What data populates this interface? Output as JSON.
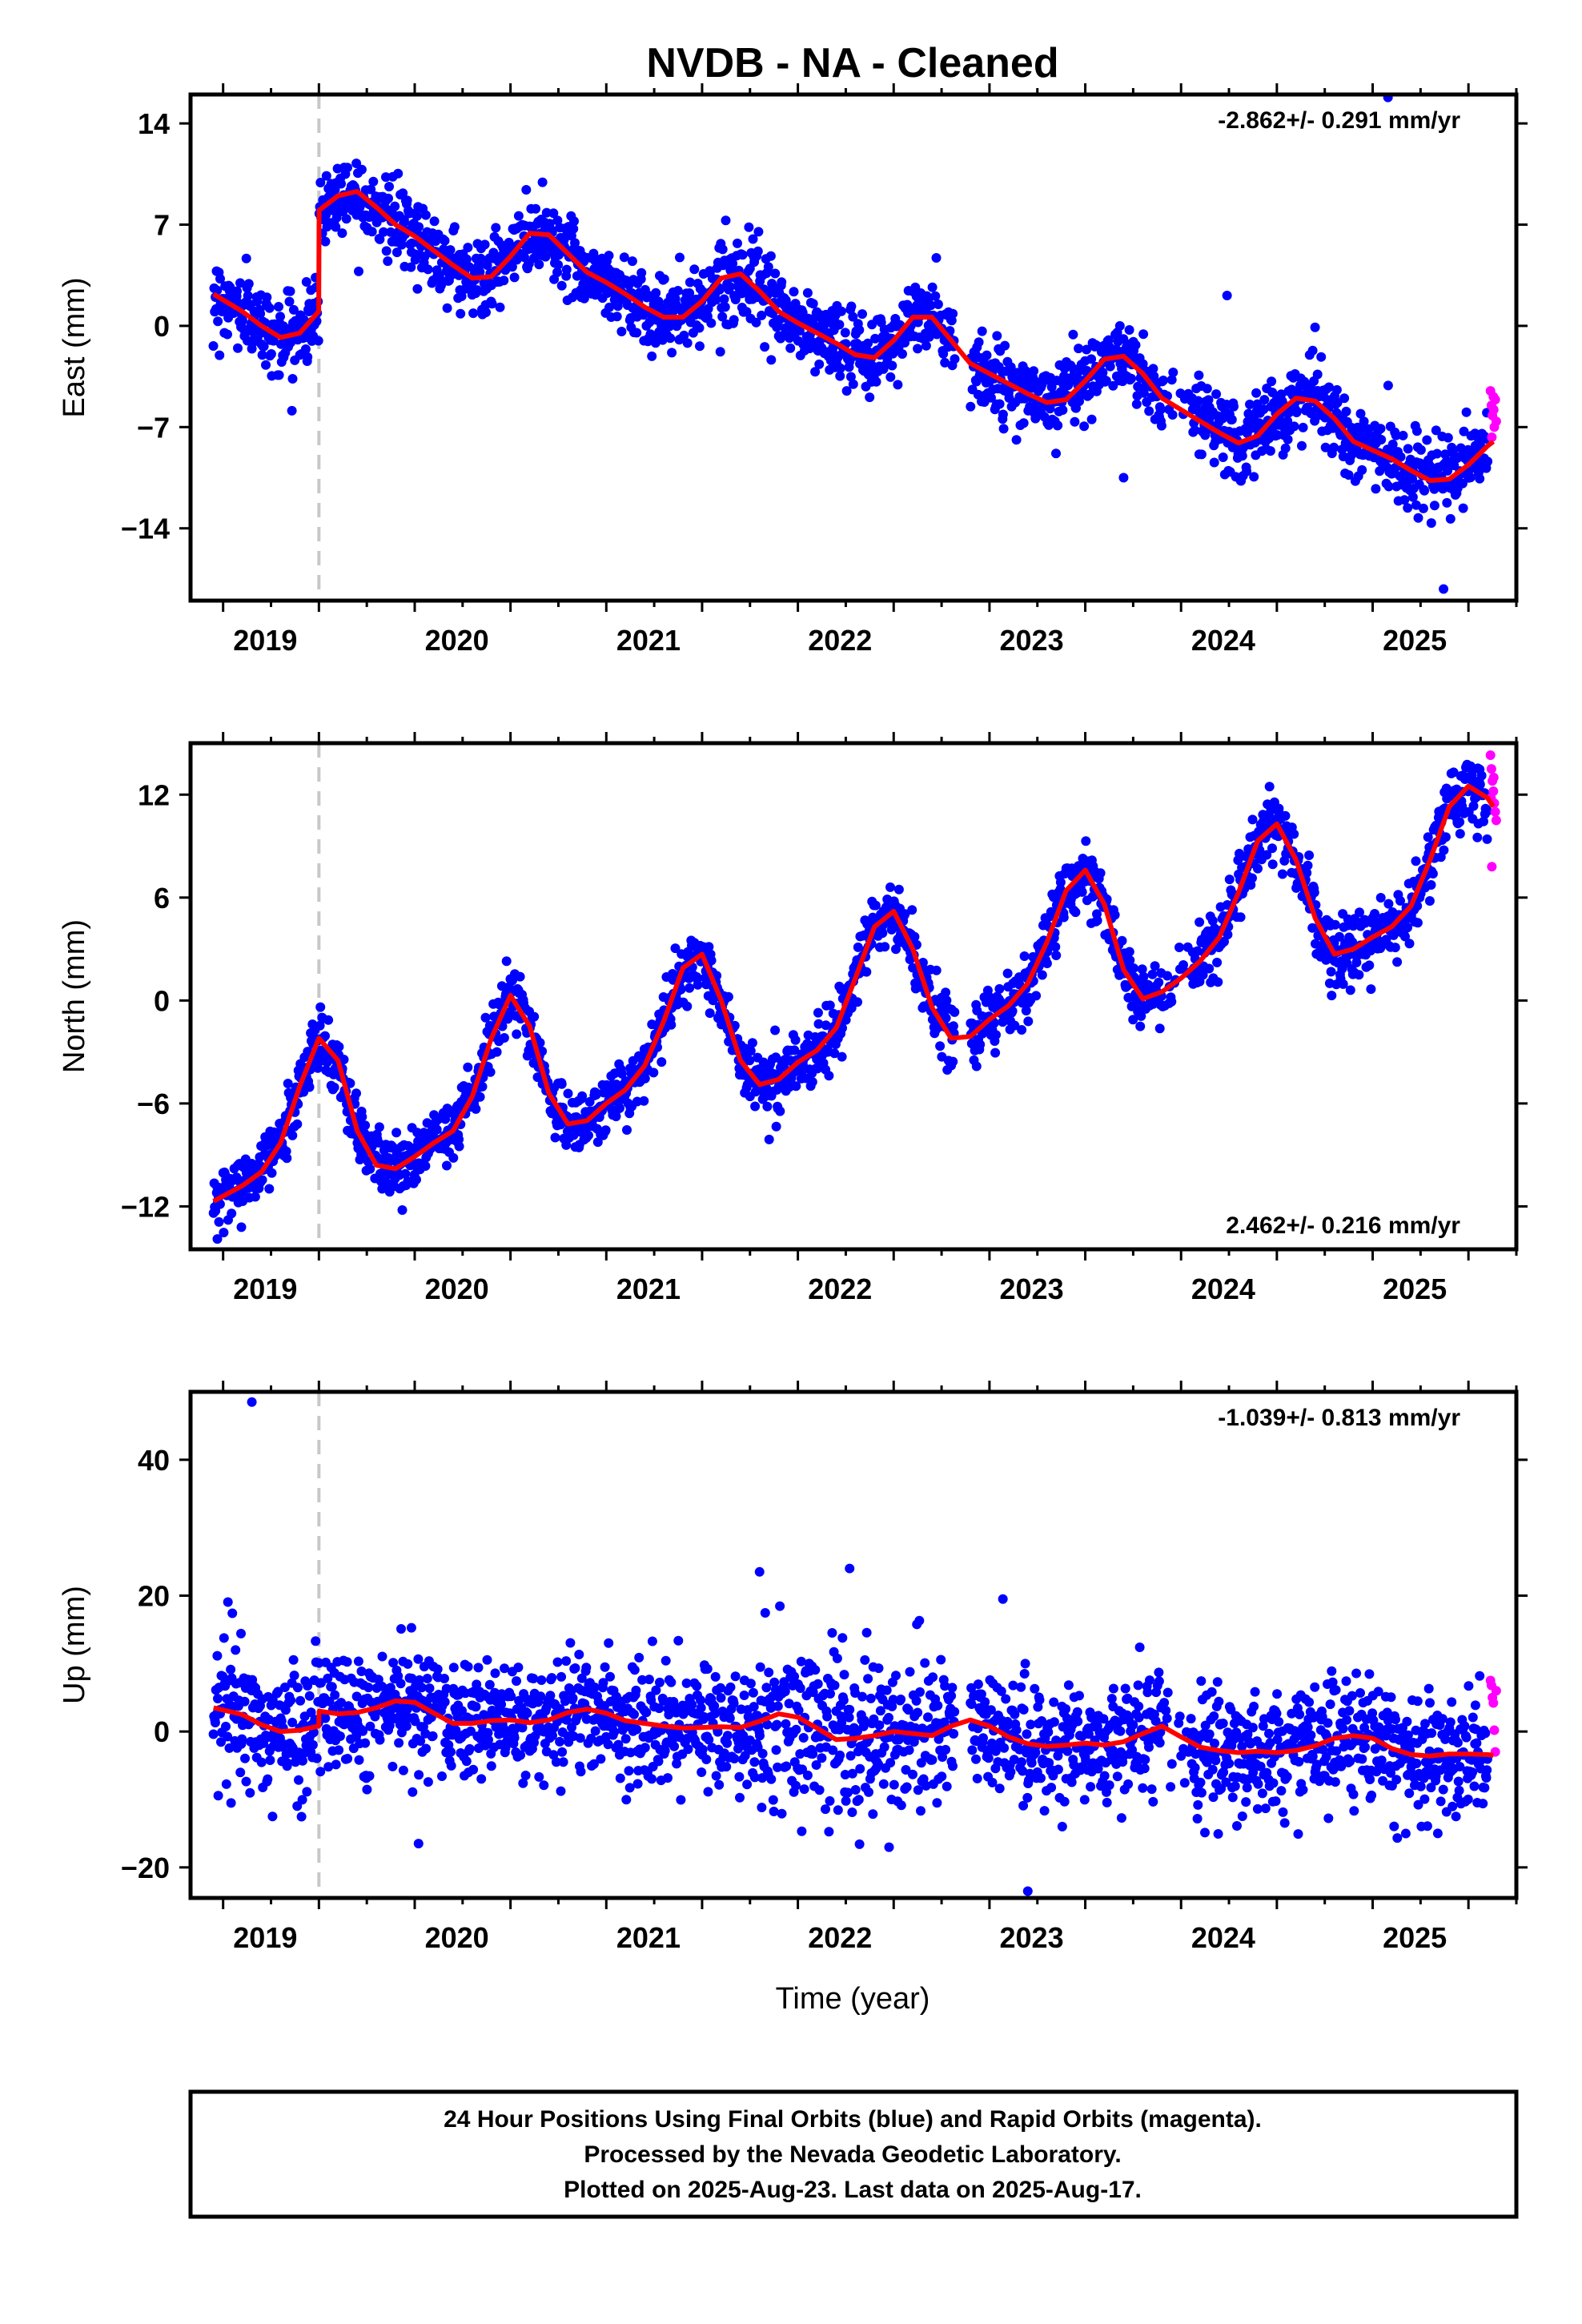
{
  "title": "NVDB  - NA - Cleaned",
  "xlabel": "Time (year)",
  "footer": {
    "line1": "24 Hour Positions Using Final Orbits (blue) and Rapid Orbits (magenta).",
    "line2": "Processed by the Nevada Geodetic Laboratory.",
    "line3": "Plotted on 2025-Aug-23. Last data on 2025-Aug-17."
  },
  "colors": {
    "final_orbits": "#0000ff",
    "rapid_orbits": "#ff00ff",
    "model": "#ff0000",
    "break_line": "#c8c8c8",
    "frame": "#000000"
  },
  "chart_data": [
    {
      "type": "scatter",
      "component": "East",
      "ylabel": "East (mm)",
      "rate": "-2.862+/- 0.291 mm/yr",
      "rate_position": "top-right",
      "xlim": [
        2018.83,
        2025.75
      ],
      "ylim": [
        -19,
        16
      ],
      "xticks": [
        "2019",
        "2020",
        "2021",
        "2022",
        "2023",
        "2024",
        "2025"
      ],
      "yticks": [
        -14,
        -7,
        0,
        7,
        14
      ],
      "equipment_break": 2019.5,
      "model_x": [
        2018.95,
        2019.1,
        2019.2,
        2019.3,
        2019.4,
        2019.499,
        2019.501,
        2019.6,
        2019.7,
        2019.8,
        2019.9,
        2020.0,
        2020.1,
        2020.2,
        2020.3,
        2020.4,
        2020.5,
        2020.6,
        2020.7,
        2020.8,
        2020.9,
        2021.0,
        2021.1,
        2021.2,
        2021.3,
        2021.4,
        2021.5,
        2021.6,
        2021.7,
        2021.8,
        2021.9,
        2022.0,
        2022.1,
        2022.2,
        2022.3,
        2022.4,
        2022.5,
        2022.6,
        2022.7,
        2022.8,
        2022.9,
        2023.0,
        2023.1,
        2023.2,
        2023.3,
        2023.4,
        2023.5,
        2023.6,
        2023.7,
        2023.8,
        2023.9,
        2024.0,
        2024.1,
        2024.2,
        2024.3,
        2024.4,
        2024.5,
        2024.6,
        2024.7,
        2024.8,
        2024.9,
        2025.0,
        2025.1,
        2025.2,
        2025.3,
        2025.4,
        2025.5,
        2025.6,
        2025.63
      ],
      "model_y": [
        2.2,
        1.0,
        0.0,
        -0.8,
        -0.5,
        1.0,
        8.0,
        9.0,
        9.3,
        8.2,
        7.0,
        6.2,
        5.2,
        4.2,
        3.3,
        3.4,
        4.8,
        6.4,
        6.3,
        5.0,
        3.7,
        3.0,
        2.2,
        1.3,
        0.6,
        0.6,
        1.7,
        3.3,
        3.6,
        2.4,
        1.0,
        0.2,
        -0.5,
        -1.2,
        -2.0,
        -2.2,
        -1.0,
        0.6,
        0.6,
        -1.0,
        -2.6,
        -3.3,
        -4.0,
        -4.7,
        -5.3,
        -5.1,
        -3.8,
        -2.3,
        -2.1,
        -3.3,
        -5.0,
        -5.8,
        -6.6,
        -7.4,
        -8.1,
        -7.6,
        -6.1,
        -5.0,
        -5.2,
        -6.4,
        -8.0,
        -8.6,
        -9.2,
        -10.0,
        -10.7,
        -10.6,
        -9.6,
        -8.3,
        -8.0
      ],
      "rapid_x": [
        2025.615,
        2025.62,
        2025.625,
        2025.63,
        2025.635,
        2025.64,
        2025.645,
        2025.622,
        2025.632
      ],
      "rapid_y": [
        -4.5,
        -5.5,
        -6.2,
        -4.9,
        -7.0,
        -5.1,
        -6.6,
        -7.7,
        -5.8
      ],
      "scatter_sigma": 1.3,
      "outliers_x": [
        2025.08,
        2025.37,
        2023.7,
        2024.24
      ],
      "outliers_y": [
        15.8,
        -18.2,
        -10.5,
        2.1
      ]
    },
    {
      "type": "scatter",
      "component": "North",
      "ylabel": "North (mm)",
      "rate": "2.462+/- 0.216 mm/yr",
      "rate_position": "bottom-right",
      "xlim": [
        2018.83,
        2025.75
      ],
      "ylim": [
        -14.5,
        15
      ],
      "xticks": [
        "2019",
        "2020",
        "2021",
        "2022",
        "2023",
        "2024",
        "2025"
      ],
      "yticks": [
        -12,
        -6,
        0,
        6,
        12
      ],
      "equipment_break": 2019.5,
      "model_x": [
        2018.95,
        2019.1,
        2019.2,
        2019.3,
        2019.4,
        2019.5,
        2019.6,
        2019.7,
        2019.8,
        2019.9,
        2020.0,
        2020.1,
        2020.2,
        2020.3,
        2020.4,
        2020.5,
        2020.6,
        2020.7,
        2020.8,
        2020.9,
        2021.0,
        2021.1,
        2021.2,
        2021.3,
        2021.4,
        2021.5,
        2021.6,
        2021.7,
        2021.8,
        2021.9,
        2022.0,
        2022.1,
        2022.2,
        2022.3,
        2022.4,
        2022.5,
        2022.6,
        2022.7,
        2022.8,
        2022.9,
        2023.0,
        2023.1,
        2023.2,
        2023.3,
        2023.4,
        2023.5,
        2023.6,
        2023.7,
        2023.8,
        2023.9,
        2024.0,
        2024.1,
        2024.2,
        2024.3,
        2024.4,
        2024.5,
        2024.6,
        2024.7,
        2024.8,
        2024.9,
        2025.0,
        2025.1,
        2025.2,
        2025.3,
        2025.4,
        2025.5,
        2025.6,
        2025.63
      ],
      "model_y": [
        -11.7,
        -10.8,
        -10.0,
        -8.3,
        -5.0,
        -2.2,
        -3.5,
        -7.6,
        -9.6,
        -9.8,
        -9.1,
        -8.3,
        -7.6,
        -5.6,
        -2.2,
        0.3,
        -1.5,
        -5.4,
        -7.2,
        -7.0,
        -6.0,
        -5.2,
        -3.8,
        -1.2,
        1.9,
        2.7,
        0.0,
        -3.5,
        -4.9,
        -4.6,
        -3.6,
        -2.9,
        -1.6,
        1.3,
        4.3,
        5.2,
        3.0,
        -0.4,
        -2.2,
        -2.1,
        -1.1,
        -0.3,
        1.0,
        3.4,
        6.4,
        7.6,
        5.6,
        1.8,
        0.1,
        0.5,
        1.3,
        2.3,
        3.7,
        6.3,
        9.3,
        10.3,
        8.2,
        4.8,
        2.7,
        3.0,
        3.7,
        4.3,
        5.5,
        8.2,
        11.3,
        12.5,
        11.8,
        11.3
      ],
      "rapid_x": [
        2025.615,
        2025.62,
        2025.625,
        2025.63,
        2025.635,
        2025.64,
        2025.645,
        2025.622,
        2025.632,
        2025.618
      ],
      "rapid_y": [
        14.3,
        13.5,
        12.8,
        12.2,
        11.5,
        11.0,
        10.5,
        7.8,
        13.0,
        11.8
      ],
      "scatter_sigma": 0.9,
      "outliers_x": [
        2018.97,
        2021.85
      ],
      "outliers_y": [
        -13.9,
        -8.1
      ]
    },
    {
      "type": "scatter",
      "component": "Up",
      "ylabel": "Up (mm)",
      "rate": "-1.039+/- 0.813 mm/yr",
      "rate_position": "top-right",
      "xlim": [
        2018.83,
        2025.75
      ],
      "ylim": [
        -24.5,
        50
      ],
      "xticks": [
        "2019",
        "2020",
        "2021",
        "2022",
        "2023",
        "2024",
        "2025"
      ],
      "yticks": [
        -20,
        0,
        20,
        40
      ],
      "equipment_break": 2019.5,
      "model_x": [
        2018.95,
        2019.1,
        2019.2,
        2019.3,
        2019.4,
        2019.499,
        2019.501,
        2019.6,
        2019.7,
        2019.8,
        2019.9,
        2020.0,
        2020.1,
        2020.2,
        2020.3,
        2020.4,
        2020.5,
        2020.6,
        2020.7,
        2020.8,
        2020.9,
        2021.0,
        2021.1,
        2021.2,
        2021.3,
        2021.4,
        2021.5,
        2021.6,
        2021.7,
        2021.8,
        2021.9,
        2022.0,
        2022.1,
        2022.2,
        2022.3,
        2022.4,
        2022.5,
        2022.6,
        2022.7,
        2022.8,
        2022.9,
        2023.0,
        2023.1,
        2023.2,
        2023.3,
        2023.4,
        2023.5,
        2023.6,
        2023.7,
        2023.8,
        2023.9,
        2024.0,
        2024.1,
        2024.2,
        2024.3,
        2024.4,
        2024.5,
        2024.6,
        2024.7,
        2024.8,
        2024.9,
        2025.0,
        2025.1,
        2025.2,
        2025.3,
        2025.4,
        2025.5,
        2025.6,
        2025.63
      ],
      "model_y": [
        3.5,
        2.5,
        1.0,
        0.0,
        0.2,
        0.8,
        3.0,
        2.6,
        2.8,
        3.5,
        4.5,
        4.3,
        2.7,
        1.2,
        1.2,
        1.6,
        1.7,
        1.3,
        1.7,
        2.8,
        3.3,
        2.7,
        1.6,
        1.2,
        0.8,
        0.5,
        0.6,
        0.7,
        0.6,
        1.5,
        2.6,
        2.1,
        0.5,
        -1.2,
        -1.0,
        -0.6,
        0.0,
        -0.3,
        -0.6,
        0.8,
        1.7,
        0.8,
        -0.8,
        -1.8,
        -2.2,
        -2.0,
        -1.7,
        -2.0,
        -1.5,
        -0.3,
        0.8,
        -0.8,
        -2.3,
        -2.8,
        -3.1,
        -2.9,
        -3.1,
        -2.8,
        -2.1,
        -1.0,
        -0.6,
        -1.0,
        -2.5,
        -3.4,
        -3.6,
        -3.3,
        -3.3,
        -3.4,
        -3.5
      ],
      "rapid_x": [
        2025.615,
        2025.62,
        2025.625,
        2025.63,
        2025.635,
        2025.64,
        2025.645
      ],
      "rapid_y": [
        7.5,
        6.8,
        5.0,
        4.2,
        0.2,
        -3.0,
        6.0
      ],
      "scatter_sigma": 4.2,
      "outliers_x": [
        2019.15,
        2021.8,
        2022.27,
        2023.07,
        2023.2,
        2020.02,
        2023.38,
        2025.34
      ],
      "outliers_y": [
        48.5,
        23.5,
        24.0,
        19.5,
        -23.5,
        -16.5,
        -14.0,
        -15.0
      ]
    }
  ]
}
